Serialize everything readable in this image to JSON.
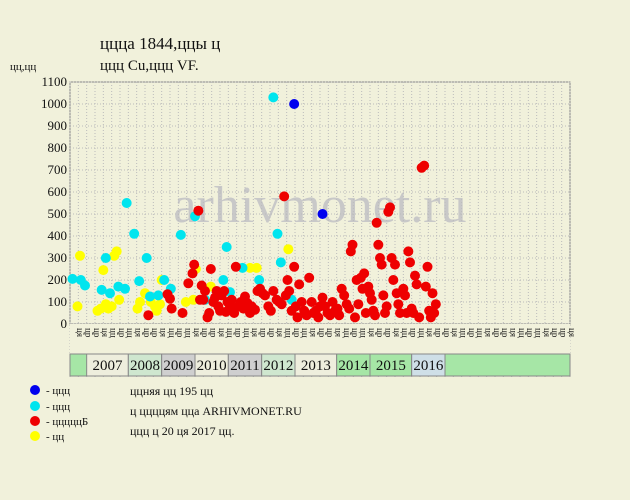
{
  "header": {
    "title_line1": "ццца 1844,ццы ц",
    "title_line2": "ццц Cu,ццц VF.",
    "ylabel": "цц,цц"
  },
  "watermark": "arhivmonet.ru",
  "legend": [
    {
      "label": "- ццц",
      "color": "#0000ee"
    },
    {
      "label": "- ццц",
      "color": "#00e5ee"
    },
    {
      "label": "- цццццБ",
      "color": "#ee0000"
    },
    {
      "label": "- цц",
      "color": "#ffff00"
    }
  ],
  "notes": [
    "ццняя цц 195 цц",
    "ц ццццям цца ARHIVMONET.RU",
    "ццц ц 20 ця 2017 цц."
  ],
  "chart_data": {
    "type": "scatter",
    "ylim": [
      0,
      1100
    ],
    "yticks": [
      0,
      100,
      200,
      300,
      400,
      500,
      600,
      700,
      800,
      900,
      1000,
      1100
    ],
    "grid": true,
    "month_labels": [
      "ця",
      "цр",
      "цр",
      "ця",
      "цц",
      "цр",
      "цц",
      "ця",
      "цр",
      "цр",
      "ця",
      "цц",
      "цр",
      "цц",
      "ця",
      "цр",
      "цр",
      "ця",
      "цц",
      "цр",
      "цц",
      "ця",
      "цр",
      "цр",
      "ця",
      "цц",
      "цр",
      "цц",
      "ця",
      "цр",
      "цр",
      "ця",
      "цц",
      "цр",
      "цц",
      "ця",
      "цр",
      "цр",
      "ця",
      "цц",
      "цр",
      "цц",
      "ця",
      "цр",
      "цр",
      "ця",
      "цц",
      "цр",
      "цц",
      "ця",
      "цр",
      "цр",
      "ця",
      "цц",
      "цр",
      "цц",
      "ця",
      "цр",
      "цр",
      "ця"
    ],
    "years": [
      {
        "label": "2007",
        "start": 2,
        "end": 7,
        "color": "#eeeedd"
      },
      {
        "label": "2008",
        "start": 7,
        "end": 11,
        "color": "#cfe7cf"
      },
      {
        "label": "2009",
        "start": 11,
        "end": 15,
        "color": "#cfcfcf"
      },
      {
        "label": "2010",
        "start": 15,
        "end": 19,
        "color": "#eeeedd"
      },
      {
        "label": "2011",
        "start": 19,
        "end": 23,
        "color": "#cfcfcf"
      },
      {
        "label": "2012",
        "start": 23,
        "end": 27,
        "color": "#cfe7cf"
      },
      {
        "label": "2013",
        "start": 27,
        "end": 32,
        "color": "#eeeedd"
      },
      {
        "label": "2014",
        "start": 32,
        "end": 36,
        "color": "#a6e6a6"
      },
      {
        "label": "2015",
        "start": 36,
        "end": 41,
        "color": "#a6e6a6"
      },
      {
        "label": "2016",
        "start": 41,
        "end": 45,
        "color": "#cfdfe7"
      }
    ],
    "series": [
      {
        "name": "ццц",
        "color": "#0000ee",
        "points": [
          [
            26.9,
            1000
          ],
          [
            30.3,
            500
          ]
        ]
      },
      {
        "name": "ццц",
        "color": "#00e5ee",
        "points": [
          [
            0.3,
            205
          ],
          [
            1.3,
            200
          ],
          [
            1.8,
            175
          ],
          [
            3.8,
            155
          ],
          [
            4.3,
            300
          ],
          [
            4.8,
            140
          ],
          [
            5.8,
            170
          ],
          [
            6.6,
            160
          ],
          [
            6.8,
            550
          ],
          [
            7.7,
            410
          ],
          [
            8.3,
            195
          ],
          [
            9.2,
            300
          ],
          [
            9.6,
            125
          ],
          [
            10.6,
            130
          ],
          [
            11.3,
            200
          ],
          [
            12.1,
            160
          ],
          [
            13.3,
            405
          ],
          [
            15.0,
            490
          ],
          [
            16.2,
            110
          ],
          [
            18.4,
            200
          ],
          [
            18.8,
            350
          ],
          [
            19.2,
            145
          ],
          [
            20.7,
            255
          ],
          [
            22.7,
            200
          ],
          [
            24.4,
            1030
          ],
          [
            24.9,
            410
          ],
          [
            25.3,
            280
          ],
          [
            26.6,
            110
          ]
        ]
      },
      {
        "name": "цццццБ",
        "color": "#ee0000",
        "points": [
          [
            9.4,
            40
          ],
          [
            11.7,
            135
          ],
          [
            12.0,
            115
          ],
          [
            12.2,
            70
          ],
          [
            13.5,
            50
          ],
          [
            14.2,
            185
          ],
          [
            14.7,
            230
          ],
          [
            14.9,
            270
          ],
          [
            15.4,
            515
          ],
          [
            15.6,
            110
          ],
          [
            15.8,
            175
          ],
          [
            16.0,
            110
          ],
          [
            16.2,
            150
          ],
          [
            16.5,
            30
          ],
          [
            16.7,
            50
          ],
          [
            16.9,
            250
          ],
          [
            17.2,
            100
          ],
          [
            17.4,
            120
          ],
          [
            17.6,
            150
          ],
          [
            17.8,
            80
          ],
          [
            18.0,
            60
          ],
          [
            18.2,
            130
          ],
          [
            18.5,
            150
          ],
          [
            18.7,
            55
          ],
          [
            18.9,
            100
          ],
          [
            19.2,
            80
          ],
          [
            19.4,
            110
          ],
          [
            19.7,
            50
          ],
          [
            19.9,
            260
          ],
          [
            20.2,
            80
          ],
          [
            20.5,
            100
          ],
          [
            20.8,
            70
          ],
          [
            21.0,
            125
          ],
          [
            21.3,
            95
          ],
          [
            21.6,
            50
          ],
          [
            21.8,
            80
          ],
          [
            22.2,
            65
          ],
          [
            22.5,
            150
          ],
          [
            22.8,
            160
          ],
          [
            23.1,
            140
          ],
          [
            23.4,
            130
          ],
          [
            23.8,
            80
          ],
          [
            24.1,
            60
          ],
          [
            24.4,
            150
          ],
          [
            24.8,
            110
          ],
          [
            25.1,
            100
          ],
          [
            25.4,
            90
          ],
          [
            25.7,
            580
          ],
          [
            25.9,
            130
          ],
          [
            26.1,
            200
          ],
          [
            26.3,
            150
          ],
          [
            26.6,
            60
          ],
          [
            26.9,
            260
          ],
          [
            27.1,
            80
          ],
          [
            27.3,
            30
          ],
          [
            27.5,
            180
          ],
          [
            27.8,
            100
          ],
          [
            28.1,
            60
          ],
          [
            28.4,
            40
          ],
          [
            28.7,
            210
          ],
          [
            29.0,
            100
          ],
          [
            29.2,
            50
          ],
          [
            29.5,
            60
          ],
          [
            29.8,
            30
          ],
          [
            30.0,
            80
          ],
          [
            30.3,
            120
          ],
          [
            30.6,
            80
          ],
          [
            30.9,
            50
          ],
          [
            31.2,
            40
          ],
          [
            31.5,
            100
          ],
          [
            31.8,
            60
          ],
          [
            32.1,
            70
          ],
          [
            32.3,
            40
          ],
          [
            32.6,
            160
          ],
          [
            32.9,
            130
          ],
          [
            33.2,
            90
          ],
          [
            33.5,
            70
          ],
          [
            33.7,
            330
          ],
          [
            33.9,
            360
          ],
          [
            34.2,
            30
          ],
          [
            34.4,
            200
          ],
          [
            34.6,
            90
          ],
          [
            34.9,
            210
          ],
          [
            35.1,
            160
          ],
          [
            35.3,
            230
          ],
          [
            35.5,
            50
          ],
          [
            35.8,
            170
          ],
          [
            36.0,
            140
          ],
          [
            36.2,
            110
          ],
          [
            36.4,
            60
          ],
          [
            36.6,
            40
          ],
          [
            36.8,
            460
          ],
          [
            37.0,
            360
          ],
          [
            37.2,
            300
          ],
          [
            37.4,
            270
          ],
          [
            37.6,
            130
          ],
          [
            37.8,
            50
          ],
          [
            38.0,
            80
          ],
          [
            38.2,
            510
          ],
          [
            38.4,
            530
          ],
          [
            38.6,
            300
          ],
          [
            38.8,
            200
          ],
          [
            39.0,
            270
          ],
          [
            39.2,
            140
          ],
          [
            39.4,
            90
          ],
          [
            39.6,
            50
          ],
          [
            40.0,
            160
          ],
          [
            40.2,
            130
          ],
          [
            40.4,
            50
          ],
          [
            40.6,
            330
          ],
          [
            40.8,
            280
          ],
          [
            41.0,
            70
          ],
          [
            41.2,
            50
          ],
          [
            41.4,
            220
          ],
          [
            41.6,
            180
          ],
          [
            41.9,
            30
          ],
          [
            42.2,
            710
          ],
          [
            42.5,
            720
          ],
          [
            42.7,
            170
          ],
          [
            42.9,
            260
          ],
          [
            43.1,
            60
          ],
          [
            43.3,
            30
          ],
          [
            43.5,
            140
          ],
          [
            43.7,
            50
          ],
          [
            43.9,
            90
          ]
        ]
      },
      {
        "name": "цц",
        "color": "#ffff00",
        "points": [
          [
            0.9,
            80
          ],
          [
            1.2,
            310
          ],
          [
            3.3,
            60
          ],
          [
            3.7,
            70
          ],
          [
            4.0,
            245
          ],
          [
            4.3,
            90
          ],
          [
            4.6,
            70
          ],
          [
            5.0,
            80
          ],
          [
            5.3,
            310
          ],
          [
            5.6,
            330
          ],
          [
            5.9,
            110
          ],
          [
            8.1,
            70
          ],
          [
            8.4,
            100
          ],
          [
            9.0,
            140
          ],
          [
            9.7,
            100
          ],
          [
            10.2,
            80
          ],
          [
            10.4,
            60
          ],
          [
            10.8,
            90
          ],
          [
            11.0,
            200
          ],
          [
            13.9,
            100
          ],
          [
            14.8,
            110
          ],
          [
            15.1,
            250
          ],
          [
            16.9,
            170
          ],
          [
            21.6,
            255
          ],
          [
            22.4,
            255
          ],
          [
            26.2,
            340
          ]
        ]
      }
    ]
  }
}
